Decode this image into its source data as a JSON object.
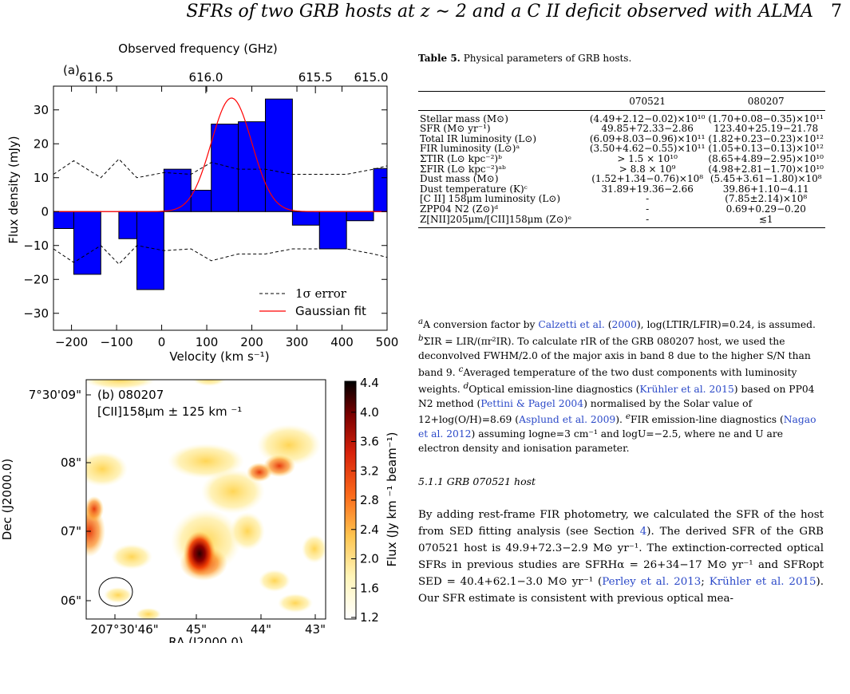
{
  "running_head": {
    "text": "SFRs of two GRB hosts at z ∼ 2 and a C II deficit observed with ALMA",
    "page": "7"
  },
  "figure_a": {
    "panel_label": "(a)",
    "top_axis_label": "Observed frequency (GHz)",
    "top_ticks": [
      "616.5",
      "616.0",
      "615.5",
      "615.0"
    ],
    "x_label": "Velocity (km s⁻¹)",
    "y_label": "Flux density (mJy)",
    "x_ticks": [
      "−200",
      "−100",
      "0",
      "100",
      "200",
      "300",
      "400",
      "500"
    ],
    "y_ticks": [
      "−30",
      "−20",
      "−10",
      "0",
      "10",
      "20",
      "30"
    ],
    "legend": {
      "error": "1σ error",
      "fit": "Gaussian fit"
    },
    "colors": {
      "bars": "#0000ff",
      "fit": "#ff0000"
    }
  },
  "figure_b": {
    "panel_label": "(b) 080207",
    "line_label": "[CII]158μm ± 125 km ⁻¹",
    "x_label": "RA (J2000.0)",
    "y_label": "Dec (J2000.0)",
    "x_ticks": [
      "207°30'46\"",
      "45\"",
      "44\"",
      "43\""
    ],
    "y_ticks": [
      "7°30'09\"",
      "08\"",
      "07\"",
      "06\""
    ],
    "colorbar_label": "Flux (Jy km ⁻¹ beam⁻¹)",
    "colorbar_ticks": [
      "4.4",
      "4.0",
      "3.6",
      "3.2",
      "2.8",
      "2.4",
      "2.0",
      "1.6",
      "1.2"
    ]
  },
  "chart_data": [
    {
      "type": "bar",
      "xlabel": "Velocity (km s⁻¹)",
      "ylabel": "Flux density (mJy)",
      "xlim": [
        -240,
        500
      ],
      "ylim": [
        -35,
        37
      ],
      "secondary_xlabel": "Observed frequency (GHz)",
      "bar_edges": [
        -240,
        -195,
        -135,
        -95,
        -55,
        5,
        65,
        110,
        170,
        230,
        290,
        350,
        410,
        470,
        500
      ],
      "values": [
        -5,
        -18.5,
        0,
        -8,
        -23,
        12.5,
        6.3,
        25.8,
        26.5,
        33.2,
        -4,
        -11,
        -2.7,
        12.7,
        -14.5
      ],
      "series": [
        {
          "name": "1σ error",
          "x": [
            -240,
            -195,
            -135,
            -95,
            -55,
            5,
            65,
            110,
            170,
            230,
            290,
            350,
            410,
            470,
            500
          ],
          "values": [
            11,
            15,
            10,
            15.5,
            10,
            11.5,
            11,
            14.5,
            12.5,
            12.5,
            11,
            11,
            11,
            12.5,
            13.5
          ]
        },
        {
          "name": "Gaussian fit",
          "amplitude": 33.5,
          "center": 155,
          "sigma": 45
        }
      ]
    },
    {
      "type": "heatmap",
      "xlabel": "RA (J2000.0)",
      "ylabel": "Dec (J2000.0)",
      "colorbar_range": [
        1.2,
        4.4
      ]
    }
  ],
  "table": {
    "caption_label": "Table 5.",
    "caption_text": "Physical parameters of GRB hosts.",
    "columns": [
      "070521",
      "080207"
    ],
    "rows": [
      {
        "label": "Stellar mass (M⊙)",
        "c1": "(4.49+2.12−0.02)×10¹⁰",
        "c2": "(1.70+0.08−0.35)×10¹¹"
      },
      {
        "label": "SFR (M⊙ yr⁻¹)",
        "c1": "49.85+72.33−2.86",
        "c2": "123.40+25.19−21.78"
      },
      {
        "label": "Total IR luminosity (L⊙)",
        "c1": "(6.09+8.03−0.96)×10¹¹",
        "c2": "(1.82+0.23−0.23)×10¹²"
      },
      {
        "label": "FIR luminosity (L⊙)ᵃ",
        "c1": "(3.50+4.62−0.55)×10¹¹",
        "c2": "(1.05+0.13−0.13)×10¹²"
      },
      {
        "label": "ΣTIR (L⊙ kpc⁻²)ᵇ",
        "c1": "> 1.5 × 10¹⁰",
        "c2": "(8.65+4.89−2.95)×10¹⁰"
      },
      {
        "label": "ΣFIR (L⊙ kpc⁻²)ᵃᵇ",
        "c1": "> 8.8 × 10⁹",
        "c2": "(4.98+2.81−1.70)×10¹⁰"
      },
      {
        "label": "Dust mass (M⊙)",
        "c1": "(1.52+1.34−0.76)×10⁸",
        "c2": "(5.45+3.61−1.80)×10⁸"
      },
      {
        "label": "Dust temperature (K)ᶜ",
        "c1": "31.89+19.36−2.66",
        "c2": "39.86+1.10−4.11"
      },
      {
        "label": "[C II] 158μm luminosity (L⊙)",
        "c1": "-",
        "c2": "(7.85±2.14)×10⁸"
      },
      {
        "label": "ZPP04 N2 (Z⊙)ᵈ",
        "c1": "-",
        "c2": "0.69+0.29−0.20"
      },
      {
        "label": "Z[NII]205μm/[CII]158μm (Z⊙)ᵉ",
        "c1": "-",
        "c2": "≲1"
      }
    ],
    "footnotes": [
      {
        "mark": "a",
        "parts": [
          "A conversion factor by ",
          "Calzetti et al.",
          " (",
          "2000",
          "), log(LTIR/LFIR)=0.24, is assumed."
        ]
      },
      {
        "mark": "b",
        "parts": [
          "ΣIR = LIR/(πr²IR). To calculate rIR of the GRB 080207 host, we used the deconvolved FWHM/2.0 of the major axis in band 8 due to the higher S/N than band 9."
        ]
      },
      {
        "mark": "c",
        "parts": [
          "Averaged temperature of the two dust components with luminosity weights."
        ]
      },
      {
        "mark": "d",
        "parts": [
          "Optical emission-line diagnostics (",
          "Krühler et al. 2015",
          ") based on PP04 N2 method (",
          "Pettini & Pagel 2004",
          ") normalised by the Solar value of 12+log(O/H)=8.69 (",
          "Asplund et al. 2009",
          ")."
        ]
      },
      {
        "mark": "e",
        "parts": [
          "FIR emission-line diagnostics (",
          "Nagao et al. 2012",
          ") assuming logne=3 cm⁻¹ and logU=−2.5, where ne and U are electron density and ionisation parameter."
        ]
      }
    ]
  },
  "section": {
    "heading": "5.1.1   GRB 070521 host",
    "parts": [
      "By adding rest-frame FIR photometry, we calculated the SFR of the host from SED fitting analysis (see Section ",
      "4",
      "). The derived SFR of the GRB 070521 host is 49.9+72.3−2.9 M⊙ yr⁻¹. The extinction-corrected optical SFRs in previous studies are SFRHα = 26+34−17 M⊙ yr⁻¹ and SFRopt SED = 40.4+62.1−3.0 M⊙ yr⁻¹ (",
      "Perley et al. 2013",
      "; ",
      "Krühler et al. 2015",
      "). Our SFR estimate is consistent with previous optical mea-"
    ]
  }
}
